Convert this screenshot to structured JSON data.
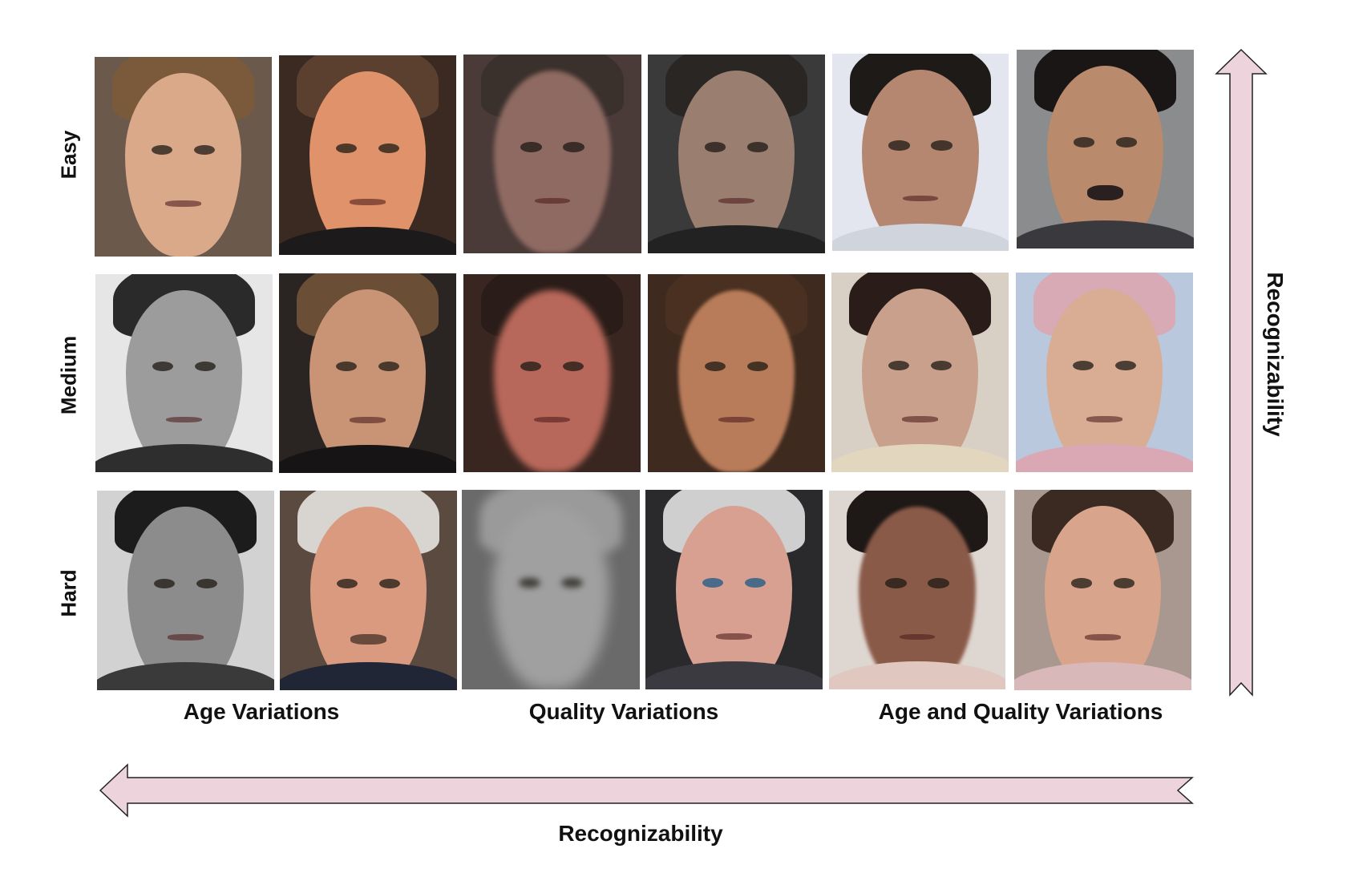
{
  "rows": [
    {
      "label": "Easy"
    },
    {
      "label": "Medium"
    },
    {
      "label": "Hard"
    }
  ],
  "groups": [
    {
      "label": "Age Variations"
    },
    {
      "label": "Quality Variations"
    },
    {
      "label": "Age and Quality Variations"
    }
  ],
  "axes": {
    "vertical_label": "Recognizability",
    "horizontal_label": "Recognizability",
    "arrow_color": "#ecd3dc"
  }
}
